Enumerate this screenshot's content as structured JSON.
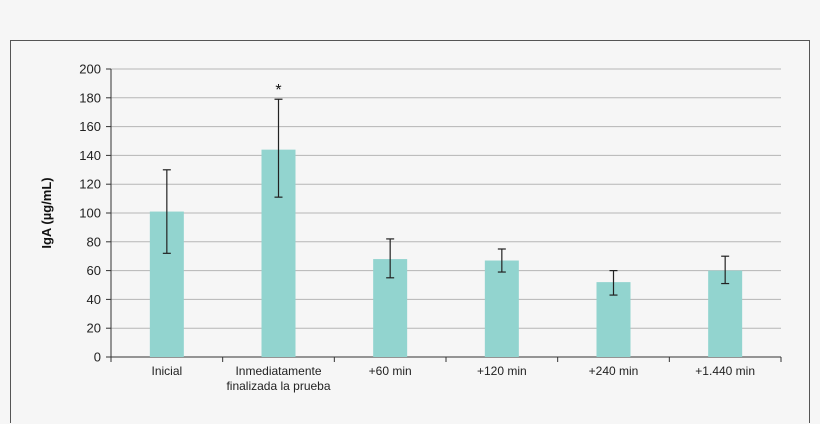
{
  "chart_data": {
    "type": "bar",
    "title": "",
    "xlabel": "",
    "ylabel": "IgA (µg/mL)",
    "ylim": [
      0,
      200
    ],
    "yticks": [
      0,
      20,
      40,
      60,
      80,
      100,
      120,
      140,
      160,
      180,
      200
    ],
    "grid": true,
    "legend": "none",
    "bar_color": "#92d4cf",
    "categories": [
      [
        "Inicial"
      ],
      [
        "Inmediatamente",
        "finalizada la prueba"
      ],
      [
        "+60 min"
      ],
      [
        "+120 min"
      ],
      [
        "+240 min"
      ],
      [
        "+1.440 min"
      ]
    ],
    "values": [
      101,
      144,
      68,
      67,
      52,
      60
    ],
    "error_low": [
      72,
      111,
      55,
      59,
      43,
      51
    ],
    "error_high": [
      130,
      179,
      82,
      75,
      60,
      70
    ],
    "annotations": [
      {
        "category_index": 1,
        "text": "*"
      }
    ]
  }
}
